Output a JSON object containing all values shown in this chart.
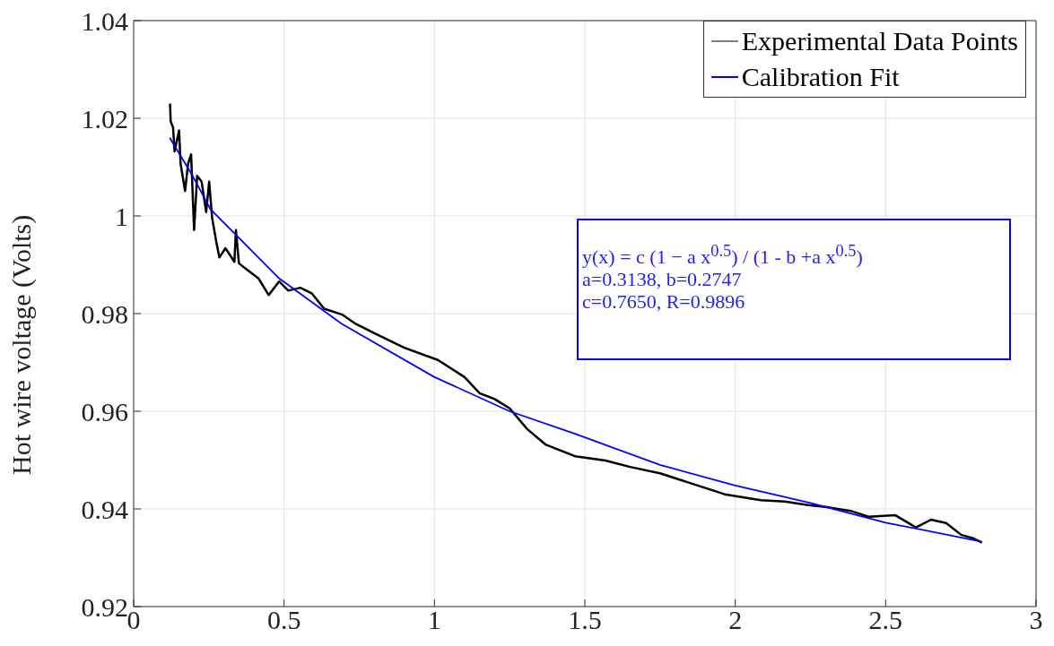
{
  "chart_data": {
    "type": "line",
    "ylabel": "Hot wire voltage (Volts)",
    "xlim": [
      0,
      3
    ],
    "xticks": [
      0,
      0.5,
      1,
      1.5,
      2,
      2.5,
      3
    ],
    "ylim": [
      0.92,
      1.04
    ],
    "yticks": [
      0.92,
      0.94,
      0.96,
      0.98,
      1,
      1.02,
      1.04
    ],
    "grid": true,
    "legend": "top right",
    "line_style": "solid",
    "annotations": [
      "y(x) = c (1 − a x$^{0.5}$) / (1 - b +a x$^{0.5}$)",
      "a=0.3138, b=0.2747",
      "c=0.7650, R=0.9896"
    ],
    "series": [
      {
        "name": "Experimental Data Points",
        "color": "#000000",
        "x": [
          0.121,
          0.123,
          0.131,
          0.136,
          0.151,
          0.156,
          0.171,
          0.181,
          0.191,
          0.201,
          0.211,
          0.226,
          0.241,
          0.251,
          0.261,
          0.275,
          0.285,
          0.305,
          0.335,
          0.34,
          0.35,
          0.375,
          0.415,
          0.449,
          0.484,
          0.514,
          0.554,
          0.593,
          0.633,
          0.693,
          0.738,
          0.8,
          0.9,
          1.011,
          1.1,
          1.15,
          1.2,
          1.25,
          1.309,
          1.369,
          1.467,
          1.569,
          1.65,
          1.75,
          1.965,
          2.025,
          2.085,
          2.164,
          2.243,
          2.313,
          2.383,
          2.443,
          2.532,
          2.601,
          2.651,
          2.701,
          2.751,
          2.79,
          2.82
        ],
        "values": [
          1.023,
          1.0194,
          1.0181,
          1.0132,
          1.0175,
          1.0107,
          1.0051,
          1.0107,
          1.0126,
          0.9971,
          1.0082,
          1.007,
          1.0008,
          1.007,
          0.9996,
          0.9946,
          0.9915,
          0.9934,
          0.9906,
          0.9971,
          0.9903,
          0.9891,
          0.9872,
          0.9838,
          0.9866,
          0.9847,
          0.9853,
          0.9841,
          0.981,
          0.9798,
          0.9779,
          0.976,
          0.973,
          0.9705,
          0.967,
          0.9637,
          0.9625,
          0.9606,
          0.9563,
          0.9532,
          0.9508,
          0.9499,
          0.9486,
          0.9473,
          0.943,
          0.9424,
          0.9418,
          0.9415,
          0.9408,
          0.9403,
          0.9396,
          0.9384,
          0.9387,
          0.9362,
          0.9378,
          0.9371,
          0.9347,
          0.934,
          0.9331
        ]
      },
      {
        "name": "Calibration Fit",
        "color": "#0000ff",
        "x": [
          0.12,
          0.196,
          0.255,
          0.484,
          0.692,
          1,
          1.25,
          1.467,
          1.75,
          2,
          2.25,
          2.5,
          2.82
        ],
        "values": [
          1.016,
          1.0082,
          1.0014,
          0.9872,
          0.9779,
          0.967,
          0.96,
          0.9554,
          0.949,
          0.9448,
          0.9412,
          0.9372,
          0.9333
        ]
      }
    ]
  }
}
